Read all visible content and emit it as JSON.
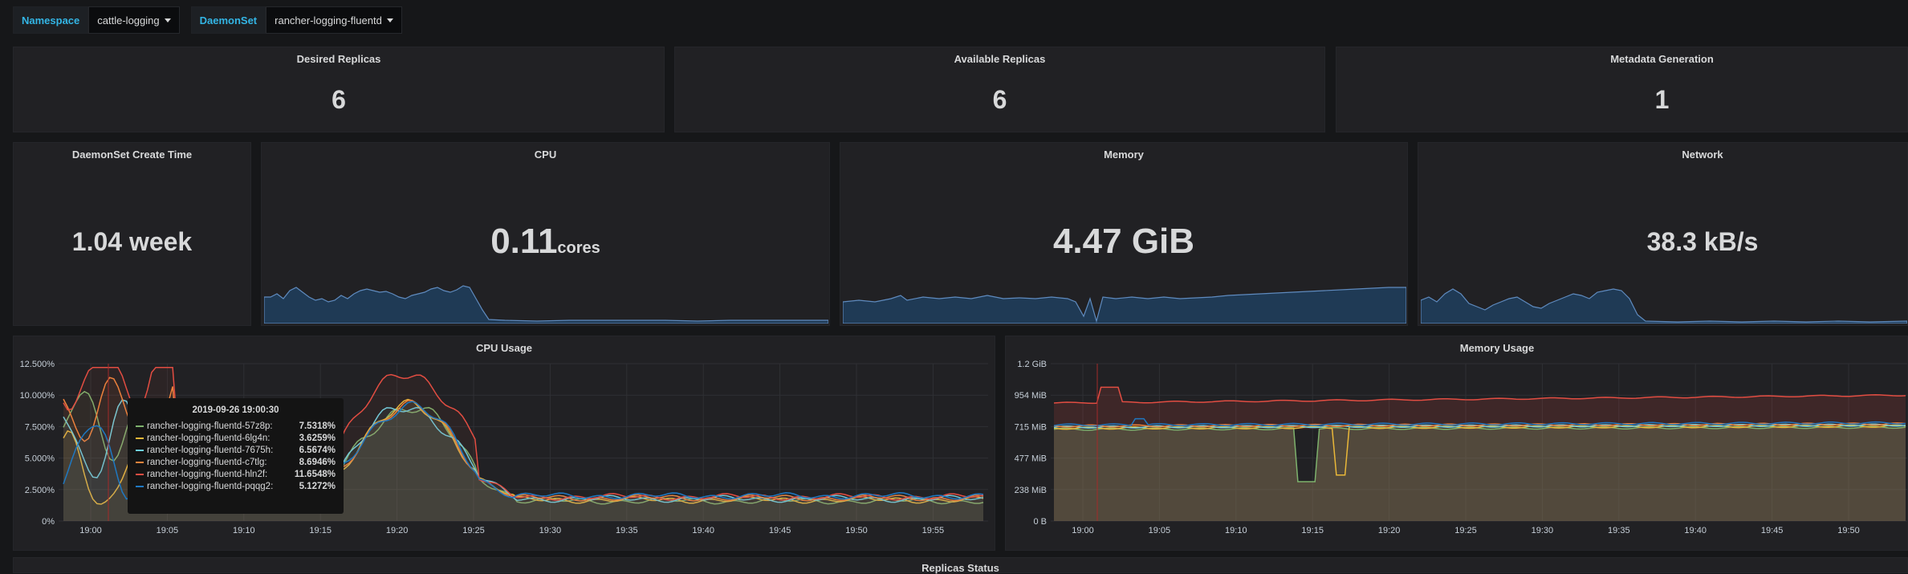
{
  "variables": [
    {
      "label": "Namespace",
      "value": "cattle-logging"
    },
    {
      "label": "DaemonSet",
      "value": "rancher-logging-fluentd"
    }
  ],
  "stats": {
    "desired": {
      "title": "Desired Replicas",
      "value": "6"
    },
    "available": {
      "title": "Available Replicas",
      "value": "6"
    },
    "generation": {
      "title": "Metadata Generation",
      "value": "1"
    },
    "create_time": {
      "title": "DaemonSet Create Time",
      "value": "1.04 week"
    },
    "cpu": {
      "title": "CPU",
      "value": "0.11",
      "unit": "cores"
    },
    "memory": {
      "title": "Memory",
      "value": "4.47 GiB"
    },
    "network": {
      "title": "Network",
      "value": "38.3 kB/s"
    }
  },
  "cpu_usage": {
    "title": "CPU Usage",
    "y_ticks": [
      "12.500%",
      "10.000%",
      "7.500%",
      "5.000%",
      "2.500%",
      "0%"
    ],
    "x_ticks": [
      "19:00",
      "19:05",
      "19:10",
      "19:15",
      "19:20",
      "19:25",
      "19:30",
      "19:35",
      "19:40",
      "19:45",
      "19:50",
      "19:55"
    ]
  },
  "memory_usage": {
    "title": "Memory Usage",
    "y_ticks": [
      "1.2 GiB",
      "954 MiB",
      "715 MiB",
      "477 MiB",
      "238 MiB",
      "0 B"
    ],
    "x_ticks": [
      "19:00",
      "19:05",
      "19:10",
      "19:15",
      "19:20",
      "19:25",
      "19:30",
      "19:35",
      "19:40",
      "19:45",
      "19:50"
    ]
  },
  "tooltip": {
    "time": "2019-09-26 19:00:30",
    "rows": [
      {
        "name": "rancher-logging-fluentd-57z8p:",
        "value": "7.5318%",
        "color": "#7eb26d"
      },
      {
        "name": "rancher-logging-fluentd-6lg4n:",
        "value": "3.6259%",
        "color": "#eab839"
      },
      {
        "name": "rancher-logging-fluentd-7675h:",
        "value": "6.5674%",
        "color": "#6ed0e0"
      },
      {
        "name": "rancher-logging-fluentd-c7tlg:",
        "value": "8.6946%",
        "color": "#ef843c"
      },
      {
        "name": "rancher-logging-fluentd-hln2f:",
        "value": "11.6548%",
        "color": "#e24d42"
      },
      {
        "name": "rancher-logging-fluentd-pqqg2:",
        "value": "5.1272%",
        "color": "#1f78c1"
      }
    ]
  },
  "footer": {
    "title": "Replicas Status"
  },
  "colors": {
    "background": "#161719",
    "panel": "#212124",
    "sparkline_fill": "#1f3a55",
    "sparkline_line": "#5f8bbf",
    "accent": "#33b5e5"
  }
}
